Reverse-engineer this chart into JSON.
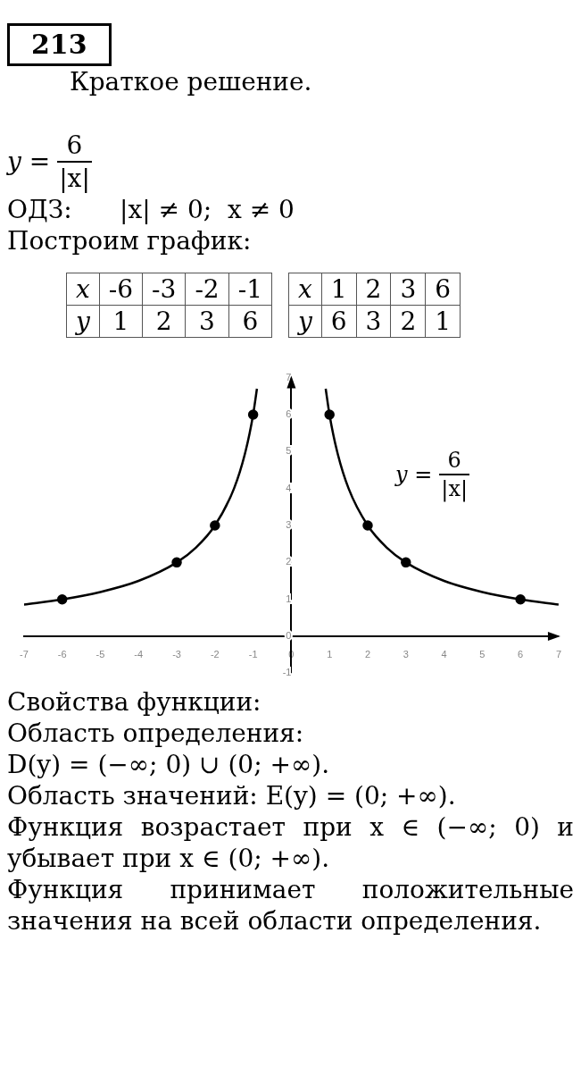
{
  "chart_data": [
    {
      "type": "other",
      "title": "213",
      "subtitle": "Краткое решение.",
      "annotations": [
        "y =",
        "6",
        "|x|",
        "ОДЗ:      |x| ≠ 0;  x ≠ 0",
        "Построим график:"
      ]
    },
    {
      "type": "other",
      "annotations": [
        "x",
        "-6",
        "-3",
        "-2",
        "-1",
        "y",
        "1",
        "2",
        "3",
        "6"
      ]
    },
    {
      "type": "other",
      "annotations": [
        "x",
        "1",
        "2",
        "3",
        "6",
        "y",
        "6",
        "3",
        "2",
        "1"
      ]
    },
    {
      "type": "line",
      "xlim": [
        -7,
        7
      ],
      "ylim": [
        -1,
        7
      ],
      "xticks": [
        -7,
        -6,
        -5,
        -4,
        -3,
        -2,
        -1,
        0,
        1,
        2,
        3,
        4,
        5,
        6,
        7
      ],
      "yticks": [
        -1,
        0,
        1,
        2,
        3,
        4,
        5,
        6,
        7
      ],
      "grid": false,
      "legend": false,
      "series": [
        {
          "type": "line",
          "marker": "none",
          "color": "#000000",
          "x": [
            -7,
            -6,
            -5,
            -4,
            -3,
            -2.5,
            -2,
            -1.5,
            -1.2,
            -1,
            -0.9
          ],
          "values": [
            0.86,
            1,
            1.2,
            1.5,
            2,
            2.4,
            3,
            4,
            5,
            6,
            6.7
          ]
        },
        {
          "type": "line",
          "marker": "none",
          "color": "#000000",
          "x": [
            0.9,
            1,
            1.2,
            1.5,
            2,
            2.5,
            3,
            4,
            5,
            6,
            7
          ],
          "values": [
            6.7,
            6,
            5,
            4,
            3,
            2.4,
            2,
            1.5,
            1.2,
            1,
            0.86
          ]
        },
        {
          "type": "scatter",
          "marker": "circle",
          "color": "#000000",
          "x": [
            -6,
            -3,
            -2,
            -1
          ],
          "values": [
            1,
            2,
            3,
            6
          ]
        },
        {
          "type": "scatter",
          "marker": "circle",
          "color": "#000000",
          "x": [
            1,
            2,
            3,
            6
          ],
          "values": [
            6,
            3,
            2,
            1
          ]
        }
      ],
      "annotations": [
        "y =",
        "6",
        "|x|"
      ]
    },
    {
      "type": "other",
      "annotations": [
        "Свойства функции:",
        "Область определения:",
        "D(y) = (−∞; 0) ∪ (0; +∞).",
        "Область значений: E(y) = (0; +∞).",
        "Функция возрастает при x ∈ (−∞; 0) и убывает при x ∈ (0; +∞).",
        "Функция принимает положительные значения на всей области определения."
      ]
    }
  ]
}
